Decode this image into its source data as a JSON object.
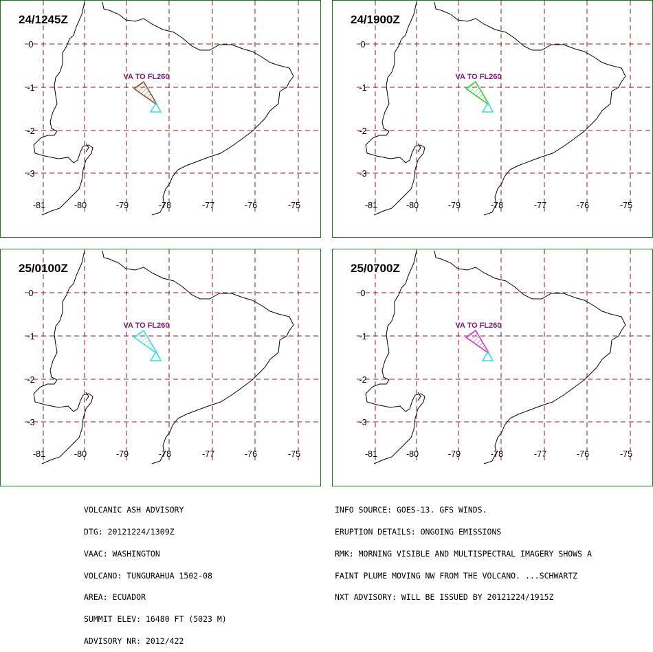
{
  "panels": [
    {
      "time": "24/1245Z",
      "plume_color": "#8b4a2b",
      "label": "VA TO FL260"
    },
    {
      "time": "24/1900Z",
      "plume_color": "#33cc33",
      "label": "VA TO FL260"
    },
    {
      "time": "25/0100Z",
      "plume_color": "#33dddd",
      "label": "VA TO FL260"
    },
    {
      "time": "25/0700Z",
      "plume_color": "#cc33cc",
      "label": "VA TO FL260"
    }
  ],
  "map": {
    "lat_labels": [
      "0",
      "-1",
      "-2",
      "-3"
    ],
    "lon_labels": [
      "-81",
      "-80",
      "-79",
      "-78",
      "-77",
      "-76",
      "-75"
    ],
    "grid_color": "#8b1a1a",
    "coast_color": "#000000",
    "volcano_color": "#33dddd"
  },
  "advisory_left": [
    "VOLCANIC ASH ADVISORY",
    "DTG: 20121224/1309Z",
    "VAAC: WASHINGTON",
    "VOLCANO: TUNGURAHUA 1502-08",
    "AREA: ECUADOR",
    "SUMMIT ELEV: 16480 FT (5023 M)",
    "ADVISORY NR: 2012/422"
  ],
  "advisory_right": [
    "INFO SOURCE: GOES-13. GFS WINDS.",
    "ERUPTION DETAILS: ONGOING EMISSIONS",
    "RMK: MORNING VISIBLE AND MULTISPECTRAL IMAGERY SHOWS A",
    "FAINT PLUME MOVING NW FROM THE VOLCANO. ...SCHWARTZ",
    "NXT ADVISORY: WILL BE ISSUED BY 20121224/1915Z"
  ]
}
